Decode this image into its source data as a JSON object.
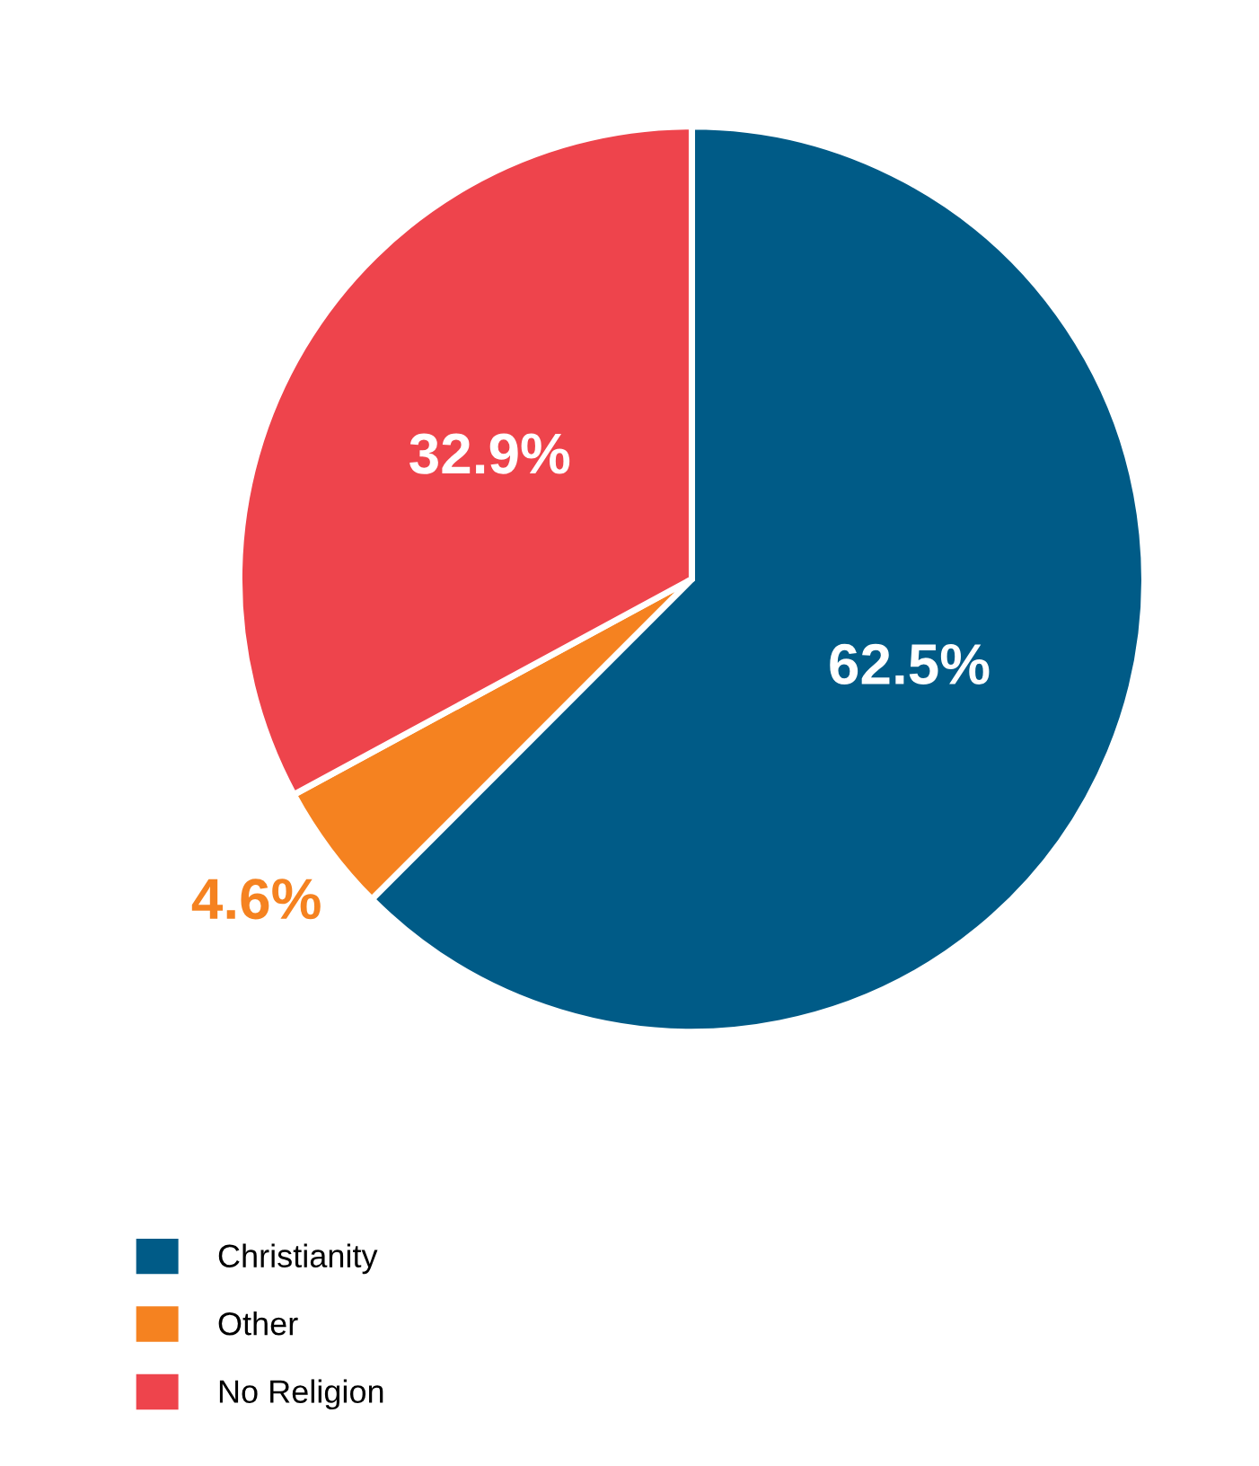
{
  "chart_data": {
    "type": "pie",
    "categories": [
      "Christianity",
      "Other",
      "No Religion"
    ],
    "values": [
      62.5,
      4.6,
      32.9
    ],
    "colors": [
      "#005b87",
      "#f58220",
      "#ee444c"
    ],
    "value_labels": [
      "62.5%",
      "4.6%",
      "32.9%"
    ],
    "legend": "bottom left"
  }
}
